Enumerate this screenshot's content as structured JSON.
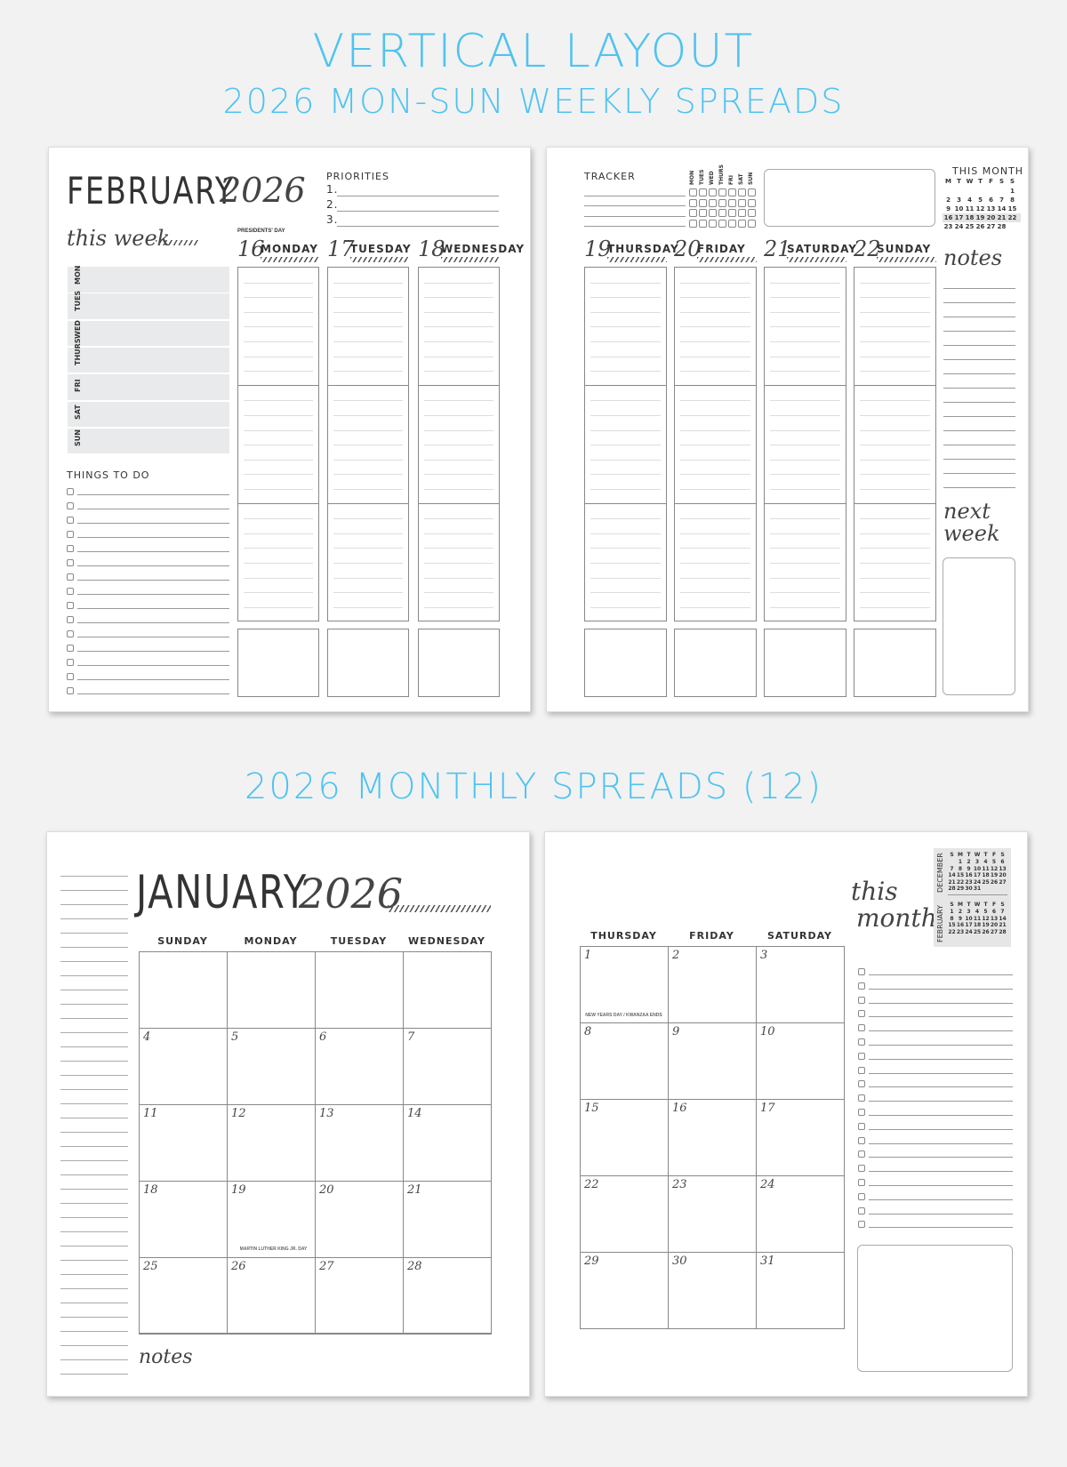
{
  "headings": {
    "top1": "VERTICAL LAYOUT",
    "top2": "2026 MON-SUN WEEKLY SPREADS",
    "middle": "2026 MONTHLY SPREADS (12)"
  },
  "colors": {
    "accent": "#4fc3f0",
    "background": "#f2f2f2",
    "row_shade": "#e9eaeb"
  },
  "weekly_left": {
    "month": "FEBRUARY",
    "year": "2026",
    "priorities_label": "PRIORITIES",
    "priorities": [
      "1.",
      "2.",
      "3."
    ],
    "this_week": "this week",
    "week_rows": [
      "MON",
      "TUES",
      "WED",
      "THURS",
      "FRI",
      "SAT",
      "SUN"
    ],
    "todo_label": "THINGS TO DO",
    "todo_count": 15,
    "holiday": "PRESIDENTS' DAY",
    "days": [
      {
        "num": "16",
        "name": "MONDAY"
      },
      {
        "num": "17",
        "name": "TUESDAY"
      },
      {
        "num": "18",
        "name": "WEDNESDAY"
      }
    ]
  },
  "weekly_right": {
    "tracker_label": "TRACKER",
    "tracker_days": [
      "MON",
      "TUES",
      "WED",
      "THURS",
      "FRI",
      "SAT",
      "SUN"
    ],
    "this_month_label": "THIS MONTH",
    "mini_headers": [
      "M",
      "T",
      "W",
      "T",
      "F",
      "S",
      "S"
    ],
    "mini_weeks": [
      [
        "",
        "",
        "",
        "",
        "",
        "",
        "1"
      ],
      [
        "2",
        "3",
        "4",
        "5",
        "6",
        "7",
        "8"
      ],
      [
        "9",
        "10",
        "11",
        "12",
        "13",
        "14",
        "15"
      ],
      [
        "16",
        "17",
        "18",
        "19",
        "20",
        "21",
        "22"
      ],
      [
        "23",
        "24",
        "25",
        "26",
        "27",
        "28",
        ""
      ]
    ],
    "highlight_week": 3,
    "days": [
      {
        "num": "19",
        "name": "THURSDAY"
      },
      {
        "num": "20",
        "name": "FRIDAY"
      },
      {
        "num": "21",
        "name": "SATURDAY"
      },
      {
        "num": "22",
        "name": "SUNDAY"
      }
    ],
    "notes": "notes",
    "next_week": [
      "next",
      "week"
    ]
  },
  "monthly_left": {
    "month": "JANUARY",
    "year": "2026",
    "headers": [
      "SUNDAY",
      "MONDAY",
      "TUESDAY",
      "WEDNESDAY"
    ],
    "weeks": [
      [
        "",
        "",
        "",
        ""
      ],
      [
        "4",
        "5",
        "6",
        "7"
      ],
      [
        "11",
        "12",
        "13",
        "14"
      ],
      [
        "18",
        "19",
        "20",
        "21"
      ],
      [
        "25",
        "26",
        "27",
        "28"
      ]
    ],
    "holiday": "MARTIN LUTHER KING JR. DAY",
    "notes": "notes"
  },
  "monthly_right": {
    "headers": [
      "THURSDAY",
      "FRIDAY",
      "SATURDAY"
    ],
    "weeks": [
      [
        "1",
        "2",
        "3"
      ],
      [
        "8",
        "9",
        "10"
      ],
      [
        "15",
        "16",
        "17"
      ],
      [
        "22",
        "23",
        "24"
      ],
      [
        "29",
        "30",
        "31"
      ]
    ],
    "holiday": "NEW YEARS DAY / KWANZAA ENDS",
    "this_month": [
      "this",
      "month"
    ],
    "mini": [
      {
        "label": "DECEMBER",
        "headers": [
          "S",
          "M",
          "T",
          "W",
          "T",
          "F",
          "S"
        ],
        "weeks": [
          [
            "",
            "1",
            "2",
            "3",
            "4",
            "5",
            "6"
          ],
          [
            "7",
            "8",
            "9",
            "10",
            "11",
            "12",
            "13"
          ],
          [
            "14",
            "15",
            "16",
            "17",
            "18",
            "19",
            "20"
          ],
          [
            "21",
            "22",
            "23",
            "24",
            "25",
            "26",
            "27"
          ],
          [
            "28",
            "29",
            "30",
            "31",
            "",
            "",
            ""
          ]
        ]
      },
      {
        "label": "FEBRUARY",
        "headers": [
          "S",
          "M",
          "T",
          "W",
          "T",
          "F",
          "S"
        ],
        "weeks": [
          [
            "1",
            "2",
            "3",
            "4",
            "5",
            "6",
            "7"
          ],
          [
            "8",
            "9",
            "10",
            "11",
            "12",
            "13",
            "14"
          ],
          [
            "15",
            "16",
            "17",
            "18",
            "19",
            "20",
            "21"
          ],
          [
            "22",
            "23",
            "24",
            "25",
            "26",
            "27",
            "28"
          ]
        ]
      }
    ],
    "todo_count": 19
  }
}
